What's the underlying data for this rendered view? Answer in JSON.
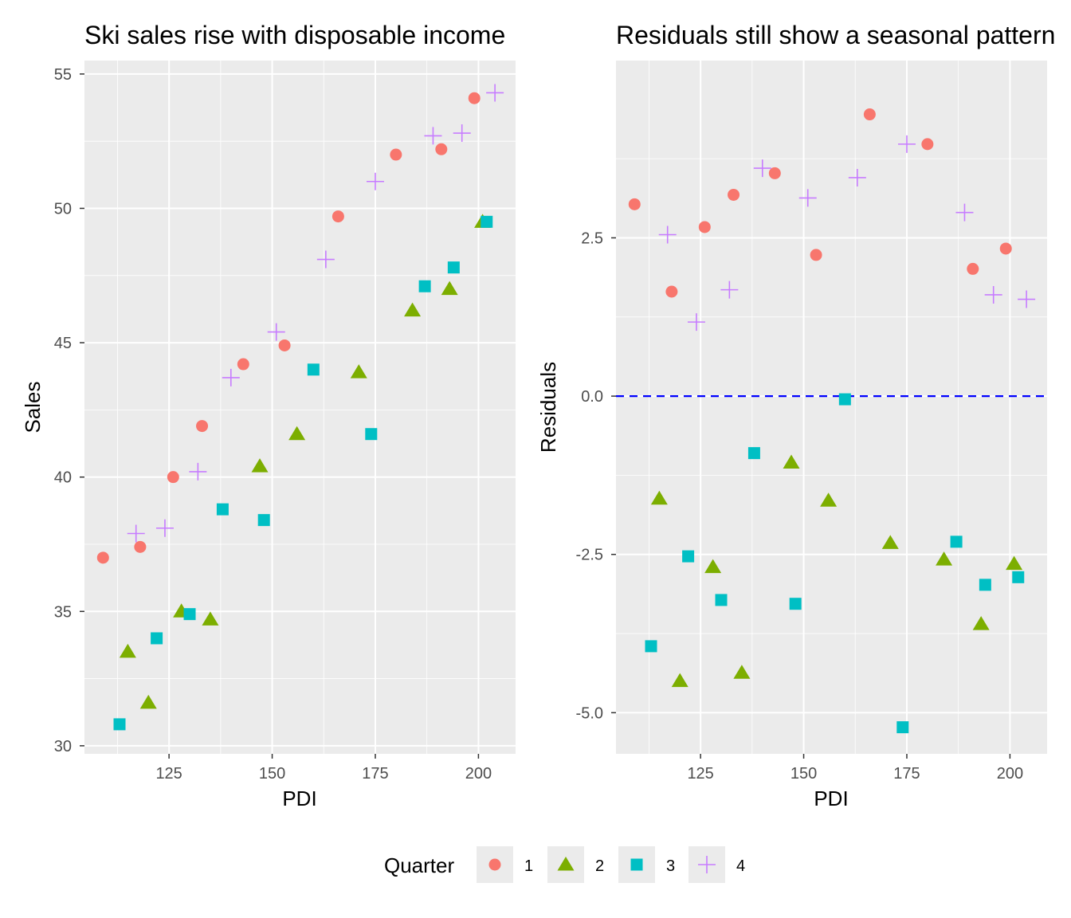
{
  "legend": {
    "title": "Quarter",
    "entries": [
      {
        "label": "1",
        "shape": "circle",
        "color": "#F8766D"
      },
      {
        "label": "2",
        "shape": "triangle",
        "color": "#7CAE00"
      },
      {
        "label": "3",
        "shape": "square",
        "color": "#00BFC4"
      },
      {
        "label": "4",
        "shape": "plus",
        "color": "#C77CFF"
      }
    ]
  },
  "chart_data": [
    {
      "type": "scatter",
      "title": "Ski sales rise with disposable income",
      "xlabel": "PDI",
      "ylabel": "Sales",
      "xlim": [
        104.5,
        209
      ],
      "ylim": [
        29.7,
        55.5
      ],
      "xticks": [
        125,
        150,
        175,
        200
      ],
      "xtick_labels": [
        "125",
        "150",
        "175",
        "200"
      ],
      "yticks": [
        30,
        35,
        40,
        45,
        50,
        55
      ],
      "ytick_labels": [
        "30",
        "35",
        "40",
        "45",
        "50",
        "55"
      ],
      "grid": true,
      "series": [
        {
          "name": "1",
          "x": [
            109,
            118,
            126,
            133,
            143,
            153,
            166,
            180,
            191,
            199
          ],
          "y": [
            37.0,
            37.4,
            40.0,
            41.9,
            44.2,
            44.9,
            49.7,
            52.0,
            52.2,
            54.1
          ]
        },
        {
          "name": "2",
          "x": [
            115,
            120,
            128,
            135,
            147,
            156,
            171,
            184,
            193,
            201
          ],
          "y": [
            33.5,
            31.6,
            35.0,
            34.7,
            40.4,
            41.6,
            43.9,
            46.2,
            47.0,
            49.5
          ]
        },
        {
          "name": "3",
          "x": [
            113,
            122,
            130,
            138,
            148,
            160,
            174,
            187,
            194,
            202
          ],
          "y": [
            30.8,
            34.0,
            34.9,
            38.8,
            38.4,
            44.0,
            41.6,
            47.1,
            47.8,
            49.5
          ]
        },
        {
          "name": "4",
          "x": [
            117,
            124,
            132,
            140,
            151,
            163,
            175,
            189,
            196,
            204
          ],
          "y": [
            37.9,
            38.1,
            40.2,
            43.7,
            45.4,
            48.1,
            51.0,
            52.7,
            52.8,
            54.3
          ]
        }
      ]
    },
    {
      "type": "scatter",
      "title": "Residuals still show a seasonal pattern",
      "xlabel": "PDI",
      "ylabel": "Residuals",
      "xlim": [
        104.5,
        209
      ],
      "ylim": [
        -5.65,
        5.3
      ],
      "xticks": [
        125,
        150,
        175,
        200
      ],
      "xtick_labels": [
        "125",
        "150",
        "175",
        "200"
      ],
      "yticks": [
        -5.0,
        -2.5,
        0.0,
        2.5
      ],
      "ytick_labels": [
        "-5.0",
        "-2.5",
        "0.0",
        "2.5"
      ],
      "grid": true,
      "reference_line": {
        "y": 0,
        "color": "#0000ff",
        "style": "dashed"
      },
      "series": [
        {
          "name": "1",
          "x": [
            109,
            118,
            126,
            133,
            143,
            153,
            166,
            180,
            191,
            199
          ],
          "y": [
            3.03,
            1.65,
            2.67,
            3.18,
            3.52,
            2.23,
            4.45,
            3.98,
            2.01,
            2.33
          ]
        },
        {
          "name": "2",
          "x": [
            115,
            120,
            128,
            135,
            147,
            156,
            171,
            184,
            193,
            201
          ],
          "y": [
            -1.62,
            -4.5,
            -2.7,
            -4.37,
            -1.05,
            -1.65,
            -2.32,
            -2.58,
            -3.6,
            -2.65
          ]
        },
        {
          "name": "3",
          "x": [
            113,
            122,
            130,
            138,
            148,
            160,
            174,
            187,
            194,
            202
          ],
          "y": [
            -3.95,
            -2.53,
            -3.22,
            -0.9,
            -3.28,
            -0.05,
            -5.23,
            -2.3,
            -2.98,
            -2.86
          ]
        },
        {
          "name": "4",
          "x": [
            117,
            124,
            132,
            140,
            151,
            163,
            175,
            189,
            196,
            204
          ],
          "y": [
            2.55,
            1.17,
            1.68,
            3.6,
            3.13,
            3.45,
            3.98,
            2.9,
            1.6,
            1.53
          ]
        }
      ]
    }
  ]
}
